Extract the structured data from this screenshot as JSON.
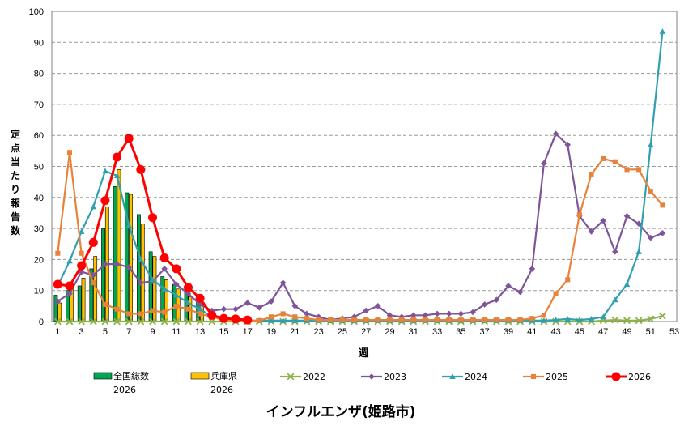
{
  "chart_data": {
    "type": "bar+line",
    "title": "インフルエンザ(姫路市)",
    "xlabel": "週",
    "ylabel_chars": [
      "定",
      "点",
      "当",
      "た",
      "り",
      "報",
      "告",
      "数"
    ],
    "ylim": [
      0,
      100
    ],
    "yticks": [
      0,
      10,
      20,
      30,
      40,
      50,
      60,
      70,
      80,
      90,
      100
    ],
    "xlim": [
      0,
      53
    ],
    "xticks": [
      1,
      3,
      5,
      7,
      9,
      11,
      13,
      15,
      17,
      19,
      21,
      23,
      25,
      27,
      29,
      31,
      33,
      35,
      37,
      39,
      41,
      43,
      45,
      47,
      49,
      51,
      53
    ],
    "grid": "horizontal dashed",
    "legend_position": "bottom",
    "bar_series": [
      {
        "name": "全国総数",
        "name2": "2026",
        "color": "#00A651",
        "values": [
          8.5,
          10.0,
          11.5,
          17.0,
          30.0,
          43.5,
          41.5,
          34.5,
          22.5,
          14.5,
          12.0,
          9.5,
          7.0
        ]
      },
      {
        "name": "兵庫県",
        "name2": "2026",
        "color": "#FFC000",
        "values": [
          6.0,
          11.5,
          14.0,
          21.0,
          37.0,
          49.0,
          41.0,
          31.5,
          21.0,
          13.5,
          10.5,
          8.0,
          6.0
        ]
      }
    ],
    "line_series": [
      {
        "name": "2022",
        "color": "#8DB14C",
        "marker": "x",
        "values": [
          0,
          0,
          0,
          0,
          0,
          0,
          0,
          0,
          0,
          0,
          0,
          0,
          0,
          0,
          0,
          0,
          0,
          0,
          0,
          0,
          0,
          0,
          0,
          0,
          0,
          0,
          0,
          0,
          0,
          0,
          0,
          0,
          0,
          0,
          0,
          0,
          0,
          0,
          0,
          0,
          0,
          0,
          0,
          0,
          0,
          0,
          0.3,
          0.5,
          0.3,
          0.3,
          0.8,
          1.8
        ]
      },
      {
        "name": "2023",
        "color": "#7E559B",
        "marker": "diamond",
        "values": [
          6.5,
          9.0,
          16.0,
          15.0,
          18.5,
          18.5,
          17.5,
          12.5,
          13.0,
          17.0,
          12.0,
          9.0,
          5.5,
          3.5,
          4.0,
          4.0,
          6.0,
          4.5,
          6.5,
          12.5,
          5.0,
          2.5,
          1.5,
          0.5,
          1.0,
          1.5,
          3.5,
          5.0,
          2.0,
          1.5,
          2.0,
          2.0,
          2.5,
          2.5,
          2.5,
          3.0,
          5.5,
          7.0,
          11.5,
          9.5,
          17.0,
          51.0,
          60.5,
          57.0,
          34.0,
          29.0,
          32.5,
          22.5,
          34.0,
          31.5,
          27.0,
          28.5
        ]
      },
      {
        "name": "2024",
        "color": "#30A0B0",
        "marker": "triangle",
        "values": [
          11.5,
          19.5,
          29.0,
          37.0,
          48.5,
          47.0,
          31.0,
          20.0,
          13.5,
          10.5,
          8.5,
          6.0,
          4.0,
          1.5,
          1.0,
          0.5,
          0.3,
          0.3,
          0.3,
          0.3,
          0.3,
          0.3,
          0.3,
          0.3,
          0.3,
          0.3,
          0.3,
          0.3,
          0.3,
          0.3,
          0.3,
          0.3,
          0.3,
          0.3,
          0.3,
          0.3,
          0.3,
          0.3,
          0.3,
          0.3,
          0.3,
          0.3,
          0.5,
          0.8,
          0.5,
          0.8,
          1.5,
          7.0,
          12.0,
          22.5,
          57.0,
          93.5
        ]
      },
      {
        "name": "2025",
        "color": "#E8823A",
        "marker": "square",
        "values": [
          22.0,
          54.5,
          22.0,
          12.5,
          5.5,
          4.0,
          2.5,
          2.5,
          3.5,
          3.0,
          5.0,
          4.0,
          2.5,
          1.5,
          0.5,
          0.3,
          0.3,
          0.3,
          1.5,
          2.5,
          1.5,
          1.0,
          0.5,
          0.5,
          0.5,
          0.5,
          0.5,
          0.5,
          0.5,
          0.5,
          0.5,
          0.5,
          0.5,
          0.5,
          0.5,
          0.5,
          0.5,
          0.5,
          0.5,
          0.5,
          1.0,
          2.0,
          9.0,
          13.5,
          34.5,
          47.5,
          52.5,
          51.5,
          49.0,
          49.0,
          42.0,
          37.5
        ]
      },
      {
        "name": "2026",
        "color": "#FF0000",
        "marker": "circle",
        "values": [
          12.0,
          11.5,
          18.0,
          25.5,
          39.0,
          53.0,
          59.0,
          49.0,
          33.5,
          20.5,
          17.0,
          11.0,
          7.5,
          2.0,
          1.0,
          0.8,
          0.5
        ]
      }
    ]
  }
}
